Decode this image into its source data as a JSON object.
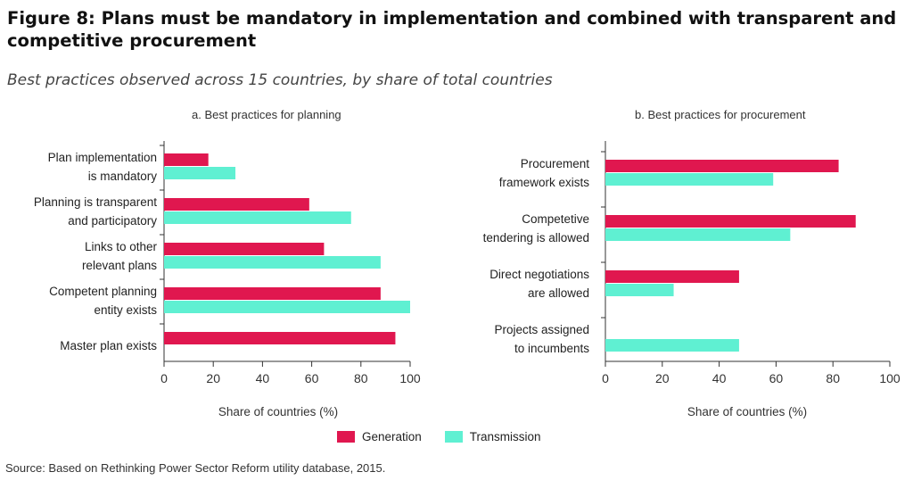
{
  "title": "Figure 8: Plans must be mandatory in implementation and combined with transparent and competitive procurement",
  "subtitle": "Best practices observed across 15 countries, by share of total countries",
  "source": "Source: Based on Rethinking Power Sector Reform utility database, 2015.",
  "legend": [
    {
      "name": "Generation",
      "color": "#e0174f"
    },
    {
      "name": "Transmission",
      "color": "#5ff0d2"
    }
  ],
  "chart_data": [
    {
      "type": "bar",
      "title": "a. Best practices for planning",
      "xlabel": "Share of countries (%)",
      "xlim": [
        0,
        100
      ],
      "ticks": [
        "0",
        "20",
        "40",
        "60",
        "80",
        "100"
      ],
      "categories": [
        [
          "Plan implementation",
          "is mandatory"
        ],
        [
          "Planning is transparent",
          "and participatory"
        ],
        [
          "Links to other",
          "relevant plans"
        ],
        [
          "Competent planning",
          "entity exists"
        ],
        [
          "Master plan exists"
        ]
      ],
      "series": [
        {
          "name": "Generation",
          "values": [
            18,
            59,
            65,
            88,
            94
          ]
        },
        {
          "name": "Transmission",
          "values": [
            29,
            76,
            88,
            100,
            null
          ]
        }
      ]
    },
    {
      "type": "bar",
      "title": "b. Best practices for procurement",
      "xlabel": "Share of countries (%)",
      "xlim": [
        0,
        100
      ],
      "ticks": [
        "0",
        "20",
        "40",
        "60",
        "80",
        "100"
      ],
      "categories": [
        [
          "Procurement",
          "framework exists"
        ],
        [
          "Competetive",
          "tendering is allowed"
        ],
        [
          "Direct negotiations",
          "are allowed"
        ],
        [
          "Projects assigned",
          "to incumbents"
        ]
      ],
      "series": [
        {
          "name": "Generation",
          "values": [
            82,
            88,
            47,
            null
          ]
        },
        {
          "name": "Transmission",
          "values": [
            59,
            65,
            24,
            47
          ]
        }
      ]
    }
  ]
}
